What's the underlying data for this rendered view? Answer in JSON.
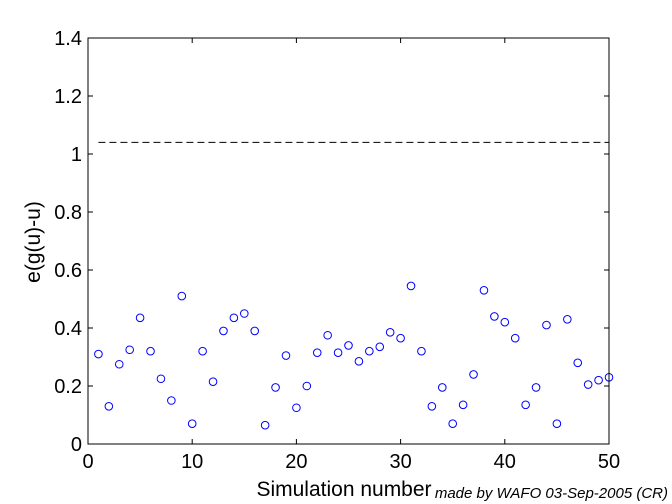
{
  "chart_data": {
    "type": "scatter",
    "title": "",
    "xlabel": "Simulation number",
    "ylabel": "e(g(u)-u)",
    "xlim": [
      0,
      50
    ],
    "ylim": [
      0,
      1.4
    ],
    "xticks": [
      "0",
      "10",
      "20",
      "30",
      "40",
      "50"
    ],
    "yticks": [
      "0",
      "0.2",
      "0.4",
      "0.6",
      "0.8",
      "1",
      "1.2",
      "1.4"
    ],
    "grid": false,
    "credit": "made by WAFO 03-Sep-2005 (CR)",
    "marker": "circle",
    "marker_color": "#0000ff",
    "reference_line": {
      "y": 1.04,
      "x_range": [
        1,
        50
      ],
      "style": "dashed",
      "color": "#000000"
    },
    "x": [
      1,
      2,
      3,
      4,
      5,
      6,
      7,
      8,
      9,
      10,
      11,
      12,
      13,
      14,
      15,
      16,
      17,
      18,
      19,
      20,
      21,
      22,
      23,
      24,
      25,
      26,
      27,
      28,
      29,
      30,
      31,
      32,
      33,
      34,
      35,
      36,
      37,
      38,
      39,
      40,
      41,
      42,
      43,
      44,
      45,
      46,
      47,
      48,
      49,
      50
    ],
    "y": [
      0.31,
      0.13,
      0.275,
      0.325,
      0.435,
      0.32,
      0.225,
      0.15,
      0.51,
      0.07,
      0.32,
      0.215,
      0.39,
      0.435,
      0.45,
      0.39,
      0.065,
      0.195,
      0.305,
      0.125,
      0.2,
      0.315,
      0.375,
      0.315,
      0.34,
      0.285,
      0.32,
      0.335,
      0.385,
      0.365,
      0.545,
      0.32,
      0.13,
      0.195,
      0.07,
      0.135,
      0.24,
      0.53,
      0.44,
      0.42,
      0.365,
      0.135,
      0.195,
      0.41,
      0.07,
      0.43,
      0.28,
      0.205,
      0.22,
      0.23
    ]
  }
}
